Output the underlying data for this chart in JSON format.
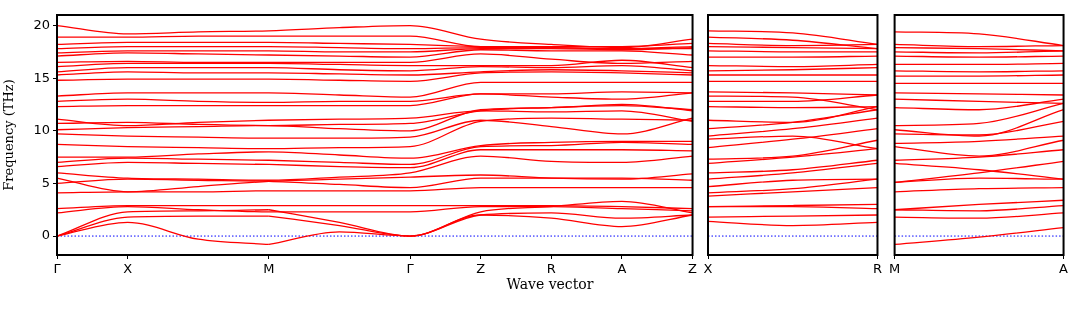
{
  "chart_data": [
    {
      "type": "line",
      "ylabel": "Frequency (THz)",
      "xlabel": "Wave vector",
      "color": "#ff0000",
      "grid": false,
      "legend": false,
      "categories": [
        "Γ",
        "X",
        null,
        "M",
        null,
        "Γ",
        "Z",
        "R",
        "A",
        "Z"
      ],
      "ylim": [
        -1.8,
        21
      ],
      "yticks": [
        0,
        5,
        10,
        15,
        20
      ],
      "ref_lines": [
        {
          "axis": "y",
          "value": 0,
          "color": "#0000ff",
          "line_style": "dotted"
        }
      ],
      "series": [
        {
          "values": [
            0,
            1.3,
            -0.3,
            -0.8,
            null,
            null,
            null,
            null,
            null,
            null
          ]
        },
        {
          "values": [
            null,
            null,
            null,
            -0.8,
            0.4,
            0,
            2.0,
            1.7,
            0.9,
            2.0
          ]
        },
        {
          "values": [
            0,
            1.8,
            1.9,
            1.9,
            null,
            null,
            null,
            null,
            null,
            null
          ]
        },
        {
          "values": [
            null,
            null,
            null,
            1.9,
            1.0,
            0,
            2.0,
            2.2,
            1.7,
            2.0
          ]
        },
        {
          "values": [
            0,
            2.3,
            2.4,
            2.5,
            null,
            null,
            null,
            null,
            null,
            null
          ]
        },
        {
          "values": [
            null,
            null,
            null,
            2.5,
            1.3,
            0,
            2.3,
            2.8,
            3.3,
            2.2
          ]
        },
        {
          "values": [
            2.2,
            2.8,
            2.5,
            2.3,
            2.3,
            2.3,
            2.8,
            2.8,
            2.6,
            2.4
          ]
        },
        {
          "values": [
            2.6,
            2.9,
            2.9,
            2.9,
            2.9,
            2.9,
            2.9,
            2.9,
            2.8,
            2.6
          ]
        },
        {
          "values": [
            4.1,
            4.2,
            4.2,
            4.3,
            4.3,
            4.3,
            4.6,
            4.6,
            4.6,
            4.6
          ]
        },
        {
          "values": [
            5.0,
            5.4,
            5.3,
            5.2,
            4.9,
            4.6,
            5.5,
            5.5,
            5.5,
            5.3
          ]
        },
        {
          "values": [
            5.5,
            4.2,
            4.7,
            5.2,
            5.4,
            5.6,
            5.8,
            5.5,
            5.4,
            5.9
          ]
        },
        {
          "values": [
            6.0,
            5.5,
            5.4,
            5.3,
            5.6,
            6.0,
            7.6,
            7.1,
            7.0,
            7.6
          ]
        },
        {
          "values": [
            6.6,
            7.0,
            6.9,
            6.8,
            6.6,
            6.5,
            8.2,
            8.2,
            8.2,
            8.1
          ]
        },
        {
          "values": [
            7.0,
            7.4,
            7.3,
            7.2,
            7.0,
            6.8,
            8.5,
            8.6,
            8.9,
            8.7
          ]
        },
        {
          "values": [
            7.5,
            7.5,
            7.8,
            8.0,
            7.7,
            7.4,
            8.6,
            8.9,
            9.0,
            9.0
          ]
        },
        {
          "values": [
            8.7,
            8.5,
            8.4,
            8.3,
            8.4,
            8.5,
            10.9,
            11.2,
            11.1,
            11.0
          ]
        },
        {
          "values": [
            9.7,
            9.5,
            9.4,
            9.3,
            9.3,
            9.4,
            11.0,
            10.4,
            9.7,
            11.2
          ]
        },
        {
          "values": [
            10.1,
            10.3,
            10.4,
            10.5,
            10.2,
            10.0,
            12.0,
            12.2,
            12.5,
            11.9
          ]
        },
        {
          "values": [
            10.7,
            10.8,
            10.6,
            10.5,
            10.6,
            10.7,
            11.9,
            12.2,
            12.4,
            12.0
          ]
        },
        {
          "values": [
            11.1,
            10.5,
            10.8,
            11.0,
            11.1,
            11.2,
            11.9,
            11.8,
            11.9,
            10.9
          ]
        },
        {
          "values": [
            12.3,
            12.4,
            12.4,
            12.4,
            12.4,
            12.4,
            13.5,
            13.5,
            13.7,
            13.6
          ]
        },
        {
          "values": [
            12.8,
            13.0,
            12.8,
            12.7,
            12.8,
            12.8,
            13.5,
            13.2,
            13.0,
            13.6
          ]
        },
        {
          "values": [
            13.3,
            13.6,
            13.6,
            13.6,
            13.4,
            13.2,
            14.6,
            14.6,
            14.6,
            14.6
          ]
        },
        {
          "values": [
            14.8,
            14.9,
            14.9,
            14.9,
            14.8,
            14.7,
            15.5,
            15.6,
            15.5,
            15.3
          ]
        },
        {
          "values": [
            15.3,
            15.6,
            15.5,
            15.5,
            15.4,
            15.3,
            15.6,
            15.8,
            15.7,
            15.5
          ]
        },
        {
          "values": [
            15.6,
            16.0,
            16.0,
            16.0,
            15.8,
            15.7,
            16.1,
            16.0,
            16.2,
            15.7
          ]
        },
        {
          "values": [
            16.1,
            16.4,
            16.4,
            16.4,
            16.3,
            16.2,
            16.2,
            16.2,
            16.7,
            16.0
          ]
        },
        {
          "values": [
            16.5,
            16.6,
            16.5,
            16.5,
            16.5,
            16.5,
            17.3,
            16.8,
            16.4,
            16.6
          ]
        },
        {
          "values": [
            17.1,
            17.4,
            17.3,
            17.2,
            17.1,
            17.0,
            17.7,
            17.6,
            17.6,
            17.2
          ]
        },
        {
          "values": [
            17.4,
            17.6,
            17.6,
            17.6,
            17.5,
            17.5,
            17.8,
            17.8,
            17.7,
            17.9
          ]
        },
        {
          "values": [
            17.8,
            18.0,
            18.0,
            18.0,
            17.9,
            17.8,
            17.9,
            17.9,
            17.8,
            17.8
          ]
        },
        {
          "values": [
            18.2,
            18.4,
            18.4,
            18.4,
            18.3,
            18.2,
            18.0,
            17.9,
            17.8,
            18.0
          ]
        },
        {
          "values": [
            18.9,
            18.9,
            19.0,
            19.0,
            19.0,
            19.0,
            18.0,
            18.0,
            18.0,
            18.3
          ]
        },
        {
          "values": [
            20.0,
            19.2,
            19.4,
            19.5,
            19.8,
            20.0,
            18.7,
            18.2,
            17.9,
            18.7
          ]
        }
      ]
    },
    {
      "type": "line",
      "color": "#ff0000",
      "grid": false,
      "legend": false,
      "tick_labels": "x",
      "categories": [
        "X",
        null,
        "R"
      ],
      "ylim": [
        -1.8,
        21
      ],
      "ref_lines": [
        {
          "axis": "y",
          "value": 0,
          "color": "#0000ff",
          "line_style": "dotted"
        }
      ],
      "series": [
        {
          "values": [
            1.4,
            1.0,
            1.3
          ]
        },
        {
          "values": [
            1.8,
            1.9,
            2.0
          ]
        },
        {
          "values": [
            2.8,
            2.8,
            2.6
          ]
        },
        {
          "values": [
            2.8,
            2.9,
            3.0
          ]
        },
        {
          "values": [
            3.8,
            4.2,
            4.6
          ]
        },
        {
          "values": [
            4.1,
            4.5,
            5.4
          ]
        },
        {
          "values": [
            4.7,
            5.3,
            5.4
          ]
        },
        {
          "values": [
            5.4,
            6.0,
            6.9
          ]
        },
        {
          "values": [
            6.0,
            6.3,
            7.2
          ]
        },
        {
          "values": [
            6.9,
            7.5,
            8.3
          ]
        },
        {
          "values": [
            7.3,
            7.6,
            9.1
          ]
        },
        {
          "values": [
            8.4,
            9.2,
            10.2
          ]
        },
        {
          "values": [
            9.2,
            9.5,
            8.3
          ]
        },
        {
          "values": [
            9.5,
            10.2,
            11.2
          ]
        },
        {
          "values": [
            10.2,
            10.8,
            12.0
          ]
        },
        {
          "values": [
            11.0,
            10.8,
            12.3
          ]
        },
        {
          "values": [
            12.3,
            12.2,
            12.3
          ]
        },
        {
          "values": [
            12.8,
            12.8,
            13.4
          ]
        },
        {
          "values": [
            13.3,
            13.2,
            12.0
          ]
        },
        {
          "values": [
            13.7,
            13.6,
            13.4
          ]
        },
        {
          "values": [
            14.7,
            14.7,
            14.7
          ]
        },
        {
          "values": [
            15.3,
            15.3,
            15.3
          ]
        },
        {
          "values": [
            15.7,
            15.8,
            16.0
          ]
        },
        {
          "values": [
            16.2,
            16.1,
            16.3
          ]
        },
        {
          "values": [
            17.0,
            17.0,
            17.1
          ]
        },
        {
          "values": [
            17.6,
            17.5,
            17.5
          ]
        },
        {
          "values": [
            18.0,
            17.9,
            17.8
          ]
        },
        {
          "values": [
            18.3,
            18.1,
            18.2
          ]
        },
        {
          "values": [
            18.9,
            18.6,
            17.8
          ]
        },
        {
          "values": [
            19.5,
            19.3,
            18.2
          ]
        }
      ]
    },
    {
      "type": "line",
      "color": "#ff0000",
      "grid": false,
      "legend": false,
      "tick_labels": "x",
      "categories": [
        "M",
        null,
        "A"
      ],
      "ylim": [
        -1.8,
        21
      ],
      "ref_lines": [
        {
          "axis": "y",
          "value": 0,
          "color": "#0000ff",
          "line_style": "dotted"
        }
      ],
      "series": [
        {
          "values": [
            -0.8,
            -0.1,
            0.8
          ]
        },
        {
          "values": [
            1.8,
            1.7,
            2.2
          ]
        },
        {
          "values": [
            2.5,
            2.4,
            2.9
          ]
        },
        {
          "values": [
            2.5,
            3.0,
            3.4
          ]
        },
        {
          "values": [
            4.2,
            4.5,
            4.6
          ]
        },
        {
          "values": [
            5.1,
            5.5,
            5.4
          ]
        },
        {
          "values": [
            5.1,
            6.0,
            7.1
          ]
        },
        {
          "values": [
            6.9,
            6.3,
            5.4
          ]
        },
        {
          "values": [
            7.2,
            7.5,
            8.2
          ]
        },
        {
          "values": [
            8.5,
            7.6,
            9.1
          ]
        },
        {
          "values": [
            8.8,
            9.0,
            9.5
          ]
        },
        {
          "values": [
            9.7,
            9.6,
            10.9
          ]
        },
        {
          "values": [
            10.1,
            9.5,
            12.0
          ]
        },
        {
          "values": [
            10.5,
            10.7,
            12.6
          ]
        },
        {
          "values": [
            12.2,
            12.0,
            13.0
          ]
        },
        {
          "values": [
            13.0,
            12.8,
            12.6
          ]
        },
        {
          "values": [
            13.6,
            13.5,
            13.4
          ]
        },
        {
          "values": [
            14.5,
            14.5,
            14.5
          ]
        },
        {
          "values": [
            15.2,
            15.2,
            15.3
          ]
        },
        {
          "values": [
            15.7,
            15.6,
            15.7
          ]
        },
        {
          "values": [
            16.3,
            16.3,
            16.4
          ]
        },
        {
          "values": [
            17.1,
            17.0,
            17.1
          ]
        },
        {
          "values": [
            17.5,
            17.4,
            17.6
          ]
        },
        {
          "values": [
            17.9,
            17.8,
            17.6
          ]
        },
        {
          "values": [
            18.2,
            18.0,
            18.1
          ]
        },
        {
          "values": [
            19.4,
            19.2,
            18.1
          ]
        }
      ]
    }
  ]
}
